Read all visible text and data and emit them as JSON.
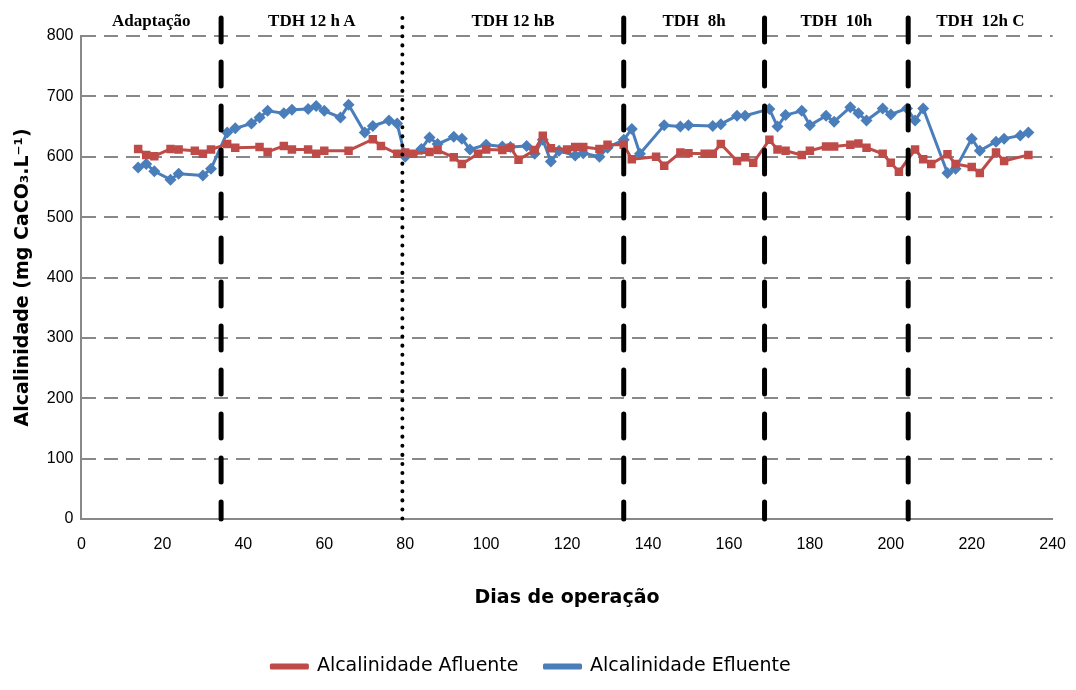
{
  "chart_data": {
    "type": "line",
    "xlabel": "Dias de operação",
    "ylabel": "Alcalinidade (mg CaCO₃.L⁻¹)",
    "xlim": [
      0,
      240
    ],
    "xticks": [
      0,
      20,
      40,
      60,
      80,
      100,
      120,
      140,
      160,
      180,
      200,
      220,
      240
    ],
    "ylim": [
      0,
      800
    ],
    "yticks": [
      0,
      100,
      200,
      300,
      400,
      500,
      600,
      700,
      800
    ],
    "grid": "y",
    "legend": "bottom",
    "series": [
      {
        "name": "Alcalinidade Afluente",
        "color": "#be4b48",
        "marker": "square",
        "x": [
          14,
          16,
          18,
          22,
          24,
          28,
          30,
          32,
          36,
          38,
          44,
          46,
          50,
          52,
          56,
          58,
          60,
          66,
          72,
          74,
          78,
          80,
          82,
          86,
          88,
          92,
          94,
          98,
          100,
          104,
          106,
          108,
          112,
          114,
          116,
          120,
          122,
          124,
          128,
          130,
          134,
          136,
          142,
          144,
          148,
          150,
          154,
          156,
          158,
          162,
          164,
          166,
          170,
          172,
          174,
          178,
          180,
          184,
          186,
          190,
          192,
          194,
          198,
          200,
          202,
          206,
          208,
          210,
          214,
          216,
          220,
          222,
          226,
          228,
          234
        ],
        "values": [
          613,
          603,
          601,
          613,
          612,
          610,
          605,
          612,
          621,
          615,
          616,
          608,
          618,
          612,
          612,
          605,
          610,
          610,
          629,
          618,
          605,
          607,
          605,
          608,
          611,
          599,
          588,
          605,
          612,
          611,
          615,
          595,
          611,
          635,
          614,
          612,
          616,
          616,
          613,
          620,
          620,
          596,
          600,
          585,
          607,
          606,
          605,
          605,
          621,
          593,
          599,
          590,
          628,
          612,
          610,
          603,
          610,
          617,
          617,
          620,
          622,
          615,
          605,
          590,
          575,
          612,
          596,
          588,
          604,
          588,
          583,
          573,
          607,
          593,
          603
        ]
      },
      {
        "name": "Alcalinidade Efluente",
        "color": "#4a7ebb",
        "marker": "diamond",
        "x": [
          14,
          16,
          18,
          22,
          24,
          30,
          32,
          36,
          38,
          42,
          44,
          46,
          50,
          52,
          56,
          58,
          60,
          64,
          66,
          70,
          72,
          76,
          78,
          80,
          84,
          86,
          88,
          92,
          94,
          96,
          100,
          104,
          106,
          110,
          112,
          114,
          116,
          118,
          122,
          124,
          128,
          130,
          134,
          136,
          138,
          144,
          148,
          150,
          156,
          158,
          162,
          164,
          170,
          172,
          174,
          178,
          180,
          184,
          186,
          190,
          192,
          194,
          198,
          200,
          204,
          206,
          208,
          214,
          216,
          220,
          222,
          226,
          228,
          232,
          234
        ],
        "values": [
          582,
          588,
          576,
          562,
          572,
          569,
          580,
          640,
          647,
          655,
          665,
          676,
          672,
          678,
          679,
          684,
          676,
          665,
          686,
          640,
          651,
          660,
          655,
          600,
          613,
          632,
          621,
          633,
          630,
          612,
          620,
          617,
          616,
          618,
          605,
          628,
          592,
          610,
          602,
          606,
          600,
          615,
          628,
          646,
          605,
          652,
          650,
          652,
          651,
          654,
          668,
          668,
          679,
          650,
          669,
          676,
          652,
          668,
          658,
          682,
          672,
          660,
          680,
          670,
          680,
          660,
          680,
          573,
          580,
          630,
          610,
          625,
          630,
          635,
          640
        ]
      }
    ],
    "ref_lines": [
      {
        "axis": "x",
        "value": 34.5,
        "color": "#000000",
        "line_style": "dashed"
      },
      {
        "axis": "x",
        "value": 79.3,
        "color": "#000000",
        "line_style": "dotted"
      },
      {
        "axis": "x",
        "value": 134,
        "color": "#000000",
        "line_style": "dashed"
      },
      {
        "axis": "x",
        "value": 168.8,
        "color": "#000000",
        "line_style": "dashed"
      },
      {
        "axis": "x",
        "value": 204.3,
        "color": "#000000",
        "line_style": "dashed"
      }
    ],
    "annotations": [
      "Adaptação",
      "TDH 12 h A",
      "TDH 12 hB",
      "TDH  8h",
      "TDH  10h",
      "TDH  12h C"
    ]
  }
}
